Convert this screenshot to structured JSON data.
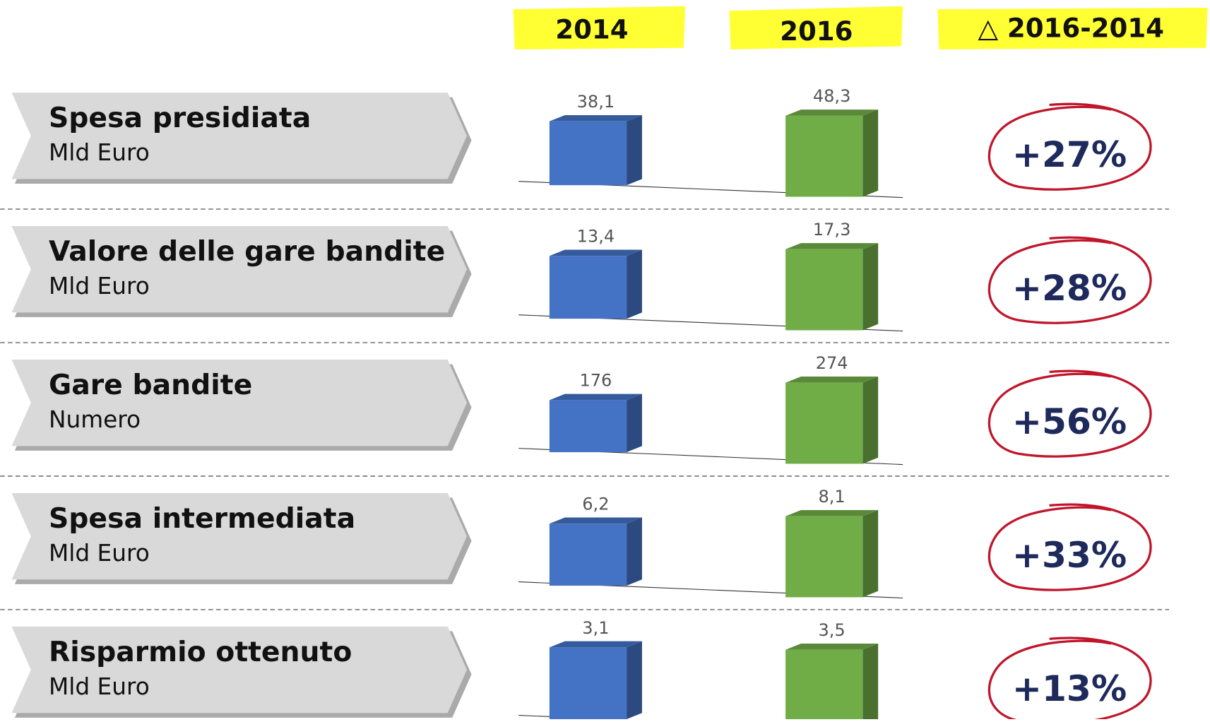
{
  "columns": [
    "2014",
    "2016",
    "△ 2016-2014"
  ],
  "chart_data": [
    {
      "type": "bar3d",
      "title": "Spesa presidiata",
      "subtitle": "Mld Euro",
      "values": [
        38.1,
        48.3
      ],
      "value_labels": [
        "38,1",
        "48,3"
      ],
      "colors": [
        "#4472c4",
        "#70ad47"
      ],
      "change": 27,
      "change_label": "+27%"
    },
    {
      "type": "bar3d",
      "title": "Valore delle gare bandite",
      "subtitle": "Mld Euro",
      "values": [
        13.4,
        17.3
      ],
      "value_labels": [
        "13,4",
        "17,3"
      ],
      "colors": [
        "#4472c4",
        "#70ad47"
      ],
      "change": 28,
      "change_label": "+28%"
    },
    {
      "type": "bar3d",
      "title": "Gare bandite",
      "subtitle": "Numero",
      "values": [
        176,
        274
      ],
      "colors": [
        "#4472c4",
        "#70ad47"
      ],
      "change": 56,
      "change_label": "+56%"
    },
    {
      "type": "bar3d",
      "title": "Spesa intermediata",
      "subtitle": "Mld Euro",
      "values": [
        6.2,
        8.1
      ],
      "value_labels": [
        "6,2",
        "8,1"
      ],
      "colors": [
        "#4472c4",
        "#70ad47"
      ],
      "change": 33,
      "change_label": "+33%"
    },
    {
      "type": "bar3d",
      "title": "Risparmio ottenuto",
      "subtitle": "Mld Euro",
      "values": [
        3.1,
        3.5
      ],
      "value_labels": [
        "3,1",
        "3,5"
      ],
      "colors": [
        "#4472c4",
        "#70ad47"
      ],
      "change": 13,
      "change_label": "+13%"
    }
  ]
}
